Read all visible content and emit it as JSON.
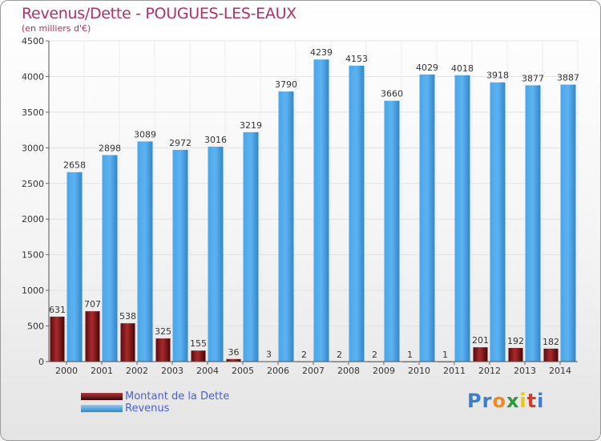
{
  "chart_data": {
    "type": "bar",
    "title": "Revenus/Dette - POUGUES-LES-EAUX",
    "subtitle": "(en milliers d'€)",
    "categories": [
      "2000",
      "2001",
      "2002",
      "2003",
      "2004",
      "2005",
      "2006",
      "2007",
      "2008",
      "2009",
      "2010",
      "2011",
      "2012",
      "2013",
      "2014"
    ],
    "series": [
      {
        "name": "Montant de la Dette",
        "color": "#7a0f12",
        "values": [
          631,
          707,
          538,
          325,
          155,
          36,
          3,
          2,
          2,
          2,
          1,
          1,
          201,
          192,
          182
        ]
      },
      {
        "name": "Revenus",
        "color": "#4aa3e3",
        "values": [
          2658,
          2898,
          3089,
          2972,
          3016,
          3219,
          3790,
          4239,
          4153,
          3660,
          4029,
          4018,
          3918,
          3877,
          3887
        ]
      }
    ],
    "ylim": [
      0,
      4500
    ],
    "yticks": [
      0,
      500,
      1000,
      1500,
      2000,
      2500,
      3000,
      3500,
      4000,
      4500
    ],
    "grid": true,
    "legend": "bottom-left"
  },
  "brand": {
    "letters": [
      "P",
      "r",
      "o",
      "x",
      "i",
      "t",
      "i"
    ],
    "colors": [
      "#3a7fd1",
      "#3a7fd1",
      "#f08a1c",
      "#2a9a3a",
      "#e8c417",
      "#d63a2a",
      "#3a7fd1"
    ]
  }
}
